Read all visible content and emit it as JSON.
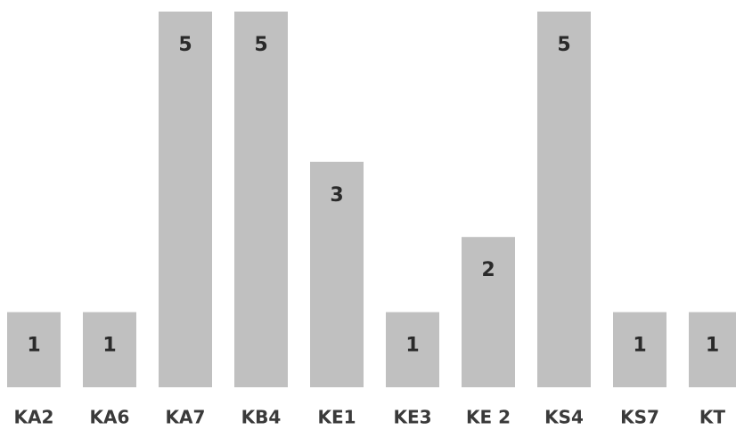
{
  "chart_data": {
    "type": "bar",
    "categories": [
      "KA2",
      "KA6",
      "KA7",
      "KB4",
      "KE1",
      "KE3",
      "KE 2",
      "KS4",
      "KS7",
      "KT"
    ],
    "values": [
      1,
      1,
      5,
      5,
      3,
      1,
      2,
      5,
      1,
      1
    ],
    "color": "#c0c0c0",
    "ylim": [
      0,
      5
    ]
  }
}
